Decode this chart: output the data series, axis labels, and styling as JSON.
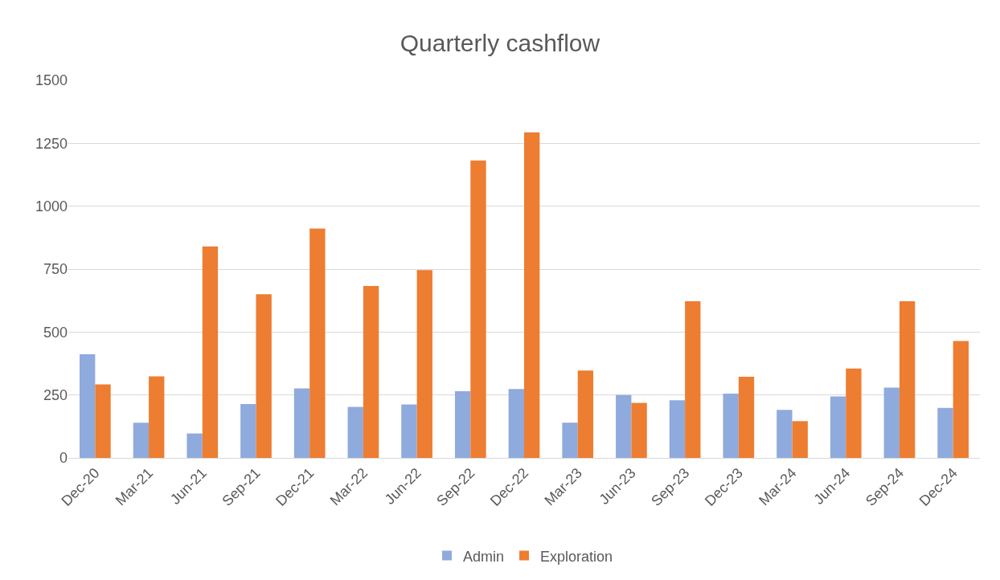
{
  "chart_data": {
    "type": "bar",
    "title": "Quarterly cashflow",
    "categories": [
      "Dec-20",
      "Mar-21",
      "Jun-21",
      "Sep-21",
      "Dec-21",
      "Mar-22",
      "Jun-22",
      "Sep-22",
      "Dec-22",
      "Mar-23",
      "Jun-23",
      "Sep-23",
      "Dec-23",
      "Mar-24",
      "Jun-24",
      "Sep-24",
      "Dec-24"
    ],
    "series": [
      {
        "name": "Admin",
        "color": "#8faadc",
        "values": [
          412,
          140,
          97,
          214,
          276,
          203,
          212,
          265,
          274,
          140,
          250,
          229,
          255,
          191,
          244,
          279,
          199
        ]
      },
      {
        "name": "Exploration",
        "color": "#ed7d31",
        "values": [
          292,
          324,
          840,
          650,
          911,
          683,
          746,
          1182,
          1293,
          347,
          219,
          622,
          322,
          146,
          355,
          622,
          464
        ]
      }
    ],
    "ylim": [
      0,
      1500
    ],
    "yticks": [
      0,
      250,
      500,
      750,
      1000,
      1250,
      1500
    ],
    "grid": "y",
    "legend": "bottom"
  }
}
